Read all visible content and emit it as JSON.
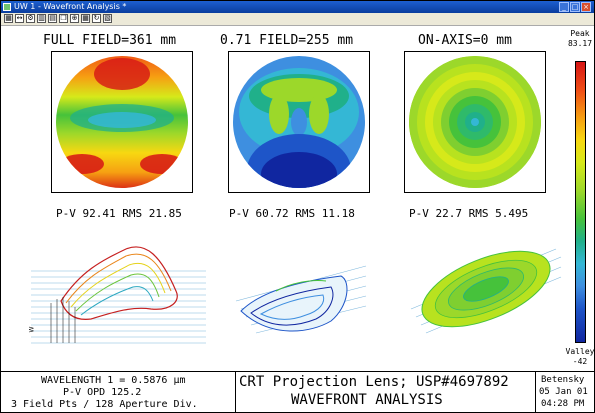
{
  "window": {
    "title": "UW 1 - Wavefront Analysis *",
    "buttons": {
      "minimize": "_",
      "maximize": "□",
      "close": "×"
    }
  },
  "toolbar": {
    "icons": [
      "grid-icon",
      "arrows-icon",
      "settings-icon",
      "layout-icon",
      "print-icon",
      "copy-icon",
      "zoom-icon",
      "tiles-icon",
      "refresh-icon",
      "export-icon"
    ]
  },
  "fields": [
    {
      "header": "FULL FIELD=361 mm",
      "stats": "P-V 92.41 RMS 21.85"
    },
    {
      "header": "0.71 FIELD=255 mm",
      "stats": "P-V 60.72 RMS 11.18"
    },
    {
      "header": "ON-AXIS=0 mm",
      "stats": "P-V 22.7 RMS 5.495"
    }
  ],
  "scale": {
    "peak_label": "Peak",
    "peak_value": "83.17",
    "valley_label": "Valley",
    "valley_value": "-42",
    "colors": [
      "#d61515",
      "#ef4d16",
      "#f6a012",
      "#f7d811",
      "#d6e91a",
      "#9cd82a",
      "#46c23b",
      "#20b08a",
      "#34b7d5",
      "#3e8fe0",
      "#1e55c8",
      "#1026a0"
    ]
  },
  "axis_tag": "W",
  "footer": {
    "wavelength": "WAVELENGTH 1 = 0.5876 μm",
    "opd": "P-V OPD 125.2",
    "fields": "3 Field Pts / 128 Aperture Div.",
    "title_line1": "CRT Projection Lens; USP#4697892",
    "title_line2": "WAVEFRONT ANALYSIS",
    "author": "Betensky",
    "date": "05 Jan 01",
    "time": "04:28 PM"
  }
}
